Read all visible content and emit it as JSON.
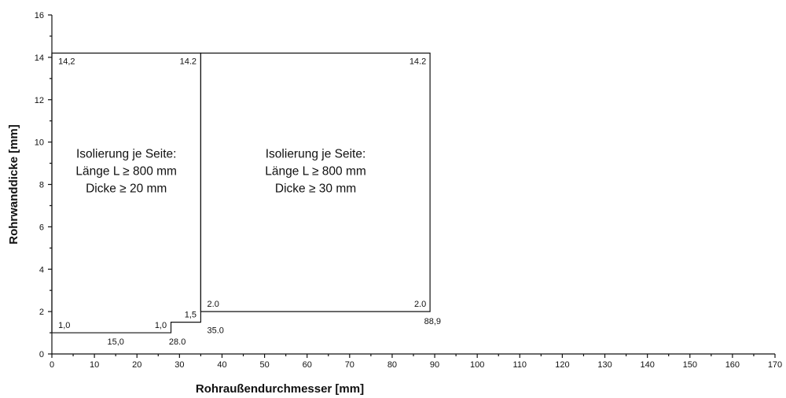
{
  "chart_data": {
    "type": "line",
    "xlabel": "Rohraußendurchmesser [mm]",
    "ylabel": "Rohrwanddicke [mm]",
    "xlim": [
      0,
      170
    ],
    "ylim": [
      0,
      16
    ],
    "xticks": [
      0,
      10,
      20,
      30,
      40,
      50,
      60,
      70,
      80,
      90,
      100,
      110,
      120,
      130,
      140,
      150,
      160,
      170
    ],
    "yticks": [
      0,
      2,
      4,
      6,
      8,
      10,
      12,
      14,
      16
    ],
    "grid": false,
    "regions": [
      {
        "boundary": [
          [
            0,
            1.0
          ],
          [
            28.0,
            1.0
          ],
          [
            28.0,
            1.5
          ],
          [
            35.0,
            1.5
          ],
          [
            35.0,
            14.2
          ],
          [
            0,
            14.2
          ]
        ],
        "text_lines": [
          "Isolierung je Seite:",
          "Länge L ≥ 800 mm",
          "Dicke ≥ 20 mm"
        ],
        "text_pos": [
          17.5,
          8.0
        ]
      },
      {
        "boundary": [
          [
            35.0,
            2.0
          ],
          [
            88.9,
            2.0
          ],
          [
            88.9,
            14.2
          ],
          [
            35.0,
            14.2
          ]
        ],
        "text_lines": [
          "Isolierung je Seite:",
          "Länge L ≥ 800 mm",
          "Dicke ≥ 30 mm"
        ],
        "text_pos": [
          62.0,
          8.0
        ]
      }
    ],
    "annotations": [
      {
        "text": "14,2",
        "x": 1.5,
        "y": 14.2,
        "anchor": "start",
        "dy": 14
      },
      {
        "text": "14.2",
        "x": 34.0,
        "y": 14.2,
        "anchor": "end",
        "dy": 14
      },
      {
        "text": "14.2",
        "x": 88.0,
        "y": 14.2,
        "anchor": "end",
        "dy": 14
      },
      {
        "text": "1,0",
        "x": 1.5,
        "y": 1.0,
        "anchor": "start",
        "dy": -6
      },
      {
        "text": "1,0",
        "x": 27.0,
        "y": 1.0,
        "anchor": "end",
        "dy": -6
      },
      {
        "text": "1,5",
        "x": 34.0,
        "y": 1.5,
        "anchor": "end",
        "dy": -6
      },
      {
        "text": "2.0",
        "x": 36.5,
        "y": 2.0,
        "anchor": "start",
        "dy": -6
      },
      {
        "text": "2.0",
        "x": 88.0,
        "y": 2.0,
        "anchor": "end",
        "dy": -6
      },
      {
        "text": "15,0",
        "x": 15.0,
        "y": 1.0,
        "anchor": "middle",
        "dy": 15
      },
      {
        "text": "28.0",
        "x": 29.5,
        "y": 1.0,
        "anchor": "middle",
        "dy": 15
      },
      {
        "text": "35.0",
        "x": 36.5,
        "y": 1.5,
        "anchor": "start",
        "dy": 14
      },
      {
        "text": "88,9",
        "x": 89.5,
        "y": 2.0,
        "anchor": "middle",
        "dy": 16
      }
    ]
  }
}
